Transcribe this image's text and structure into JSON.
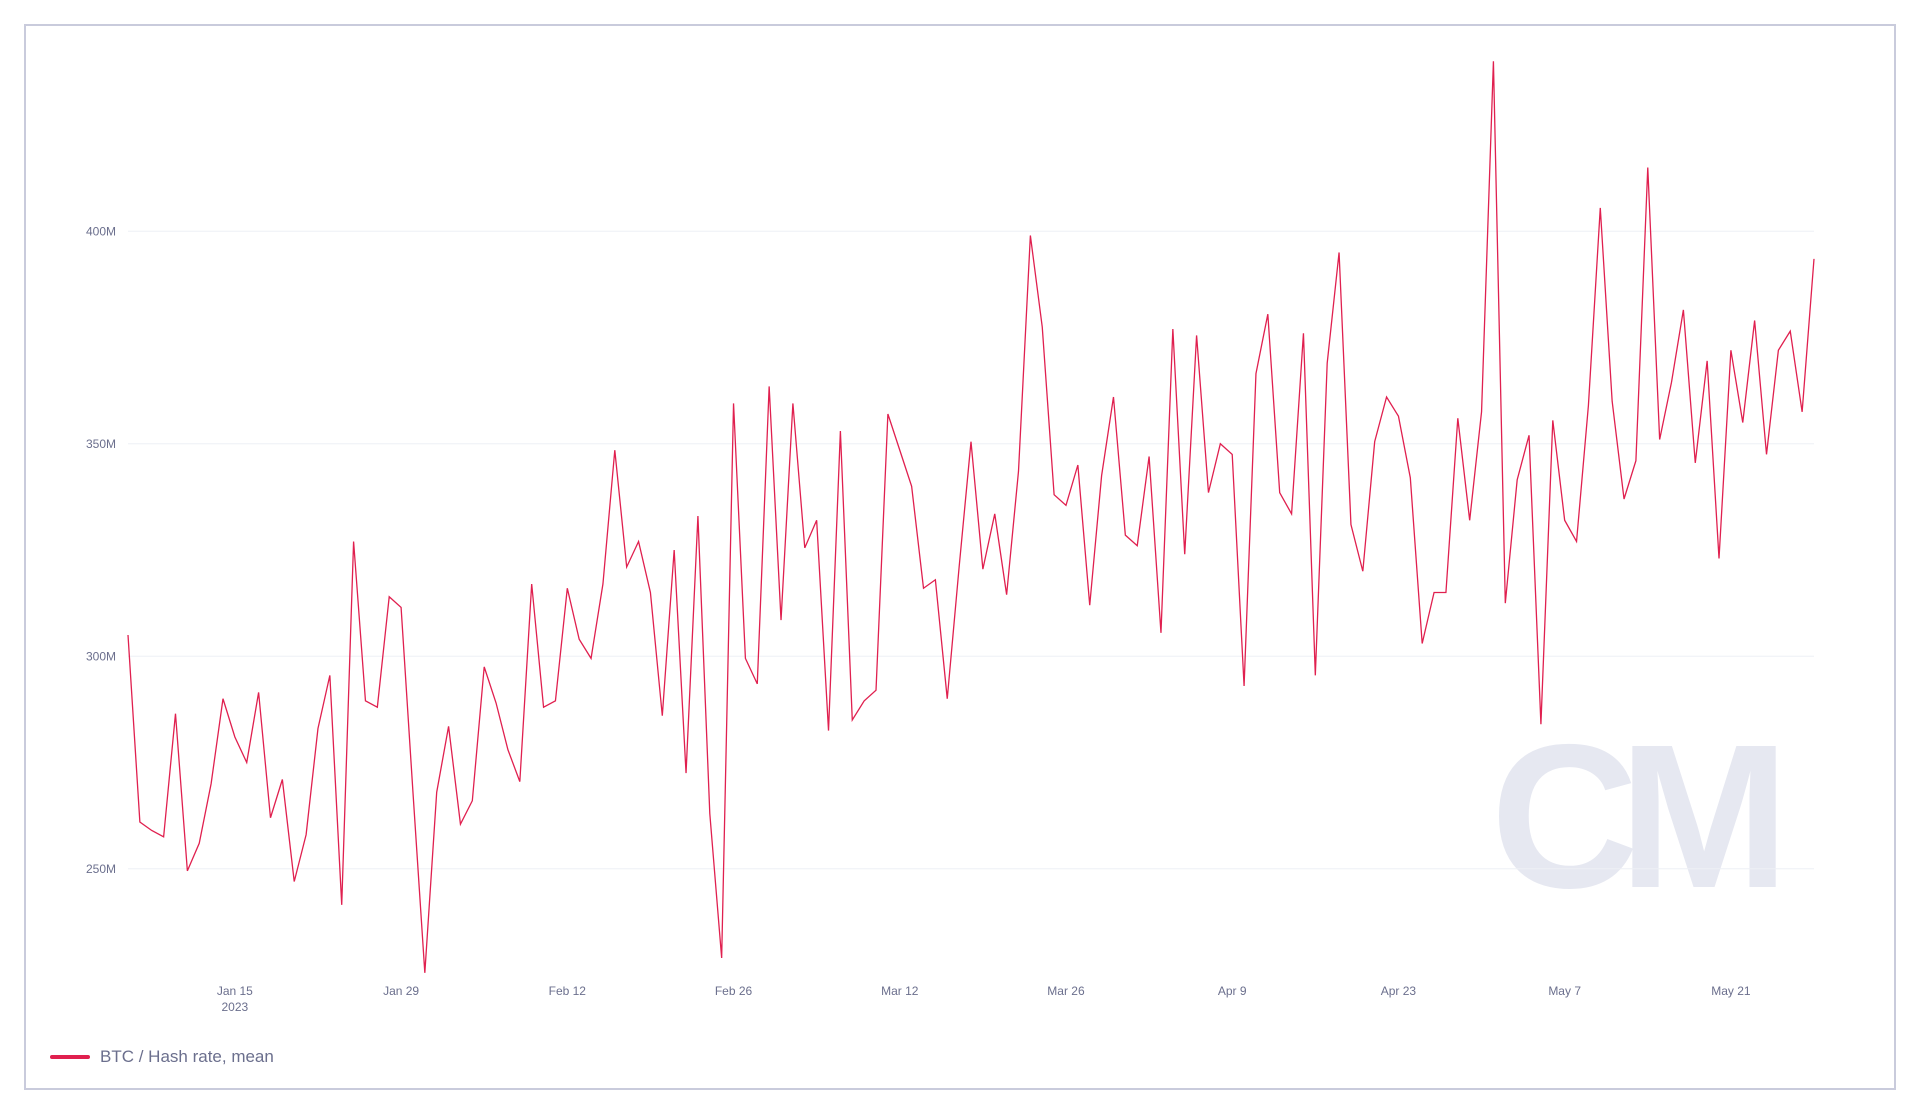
{
  "chart_data": {
    "type": "line",
    "title": "",
    "xlabel": "",
    "ylabel": "",
    "ylim": [
      225000000,
      445000000
    ],
    "grid": true,
    "legend_position": "bottom-left",
    "y_ticks": [
      {
        "value": 250000000,
        "label": "250M"
      },
      {
        "value": 300000000,
        "label": "300M"
      },
      {
        "value": 350000000,
        "label": "350M"
      },
      {
        "value": 400000000,
        "label": "400M"
      }
    ],
    "x_ticks": [
      {
        "date": "2023-01-15",
        "label": "Jan 15",
        "sublabel": "2023"
      },
      {
        "date": "2023-01-29",
        "label": "Jan 29"
      },
      {
        "date": "2023-02-12",
        "label": "Feb 12"
      },
      {
        "date": "2023-02-26",
        "label": "Feb 26"
      },
      {
        "date": "2023-03-12",
        "label": "Mar 12"
      },
      {
        "date": "2023-03-26",
        "label": "Mar 26"
      },
      {
        "date": "2023-04-09",
        "label": "Apr 9"
      },
      {
        "date": "2023-04-23",
        "label": "Apr 23"
      },
      {
        "date": "2023-05-07",
        "label": "May 7"
      },
      {
        "date": "2023-05-21",
        "label": "May 21"
      }
    ],
    "x_range": [
      "2023-01-06",
      "2023-05-28"
    ],
    "series": [
      {
        "name": "BTC / Hash rate, mean",
        "color": "#e0204f",
        "x": [
          "2023-01-06",
          "2023-01-07",
          "2023-01-08",
          "2023-01-09",
          "2023-01-10",
          "2023-01-11",
          "2023-01-12",
          "2023-01-13",
          "2023-01-14",
          "2023-01-15",
          "2023-01-16",
          "2023-01-17",
          "2023-01-18",
          "2023-01-19",
          "2023-01-20",
          "2023-01-21",
          "2023-01-22",
          "2023-01-23",
          "2023-01-24",
          "2023-01-25",
          "2023-01-26",
          "2023-01-27",
          "2023-01-28",
          "2023-01-29",
          "2023-01-30",
          "2023-01-31",
          "2023-02-01",
          "2023-02-02",
          "2023-02-03",
          "2023-02-04",
          "2023-02-05",
          "2023-02-06",
          "2023-02-07",
          "2023-02-08",
          "2023-02-09",
          "2023-02-10",
          "2023-02-11",
          "2023-02-12",
          "2023-02-13",
          "2023-02-14",
          "2023-02-15",
          "2023-02-16",
          "2023-02-17",
          "2023-02-18",
          "2023-02-19",
          "2023-02-20",
          "2023-02-21",
          "2023-02-22",
          "2023-02-23",
          "2023-02-24",
          "2023-02-25",
          "2023-02-26",
          "2023-02-27",
          "2023-02-28",
          "2023-03-01",
          "2023-03-02",
          "2023-03-03",
          "2023-03-04",
          "2023-03-05",
          "2023-03-06",
          "2023-03-07",
          "2023-03-08",
          "2023-03-09",
          "2023-03-10",
          "2023-03-11",
          "2023-03-12",
          "2023-03-13",
          "2023-03-14",
          "2023-03-15",
          "2023-03-16",
          "2023-03-17",
          "2023-03-18",
          "2023-03-19",
          "2023-03-20",
          "2023-03-21",
          "2023-03-22",
          "2023-03-23",
          "2023-03-24",
          "2023-03-25",
          "2023-03-26",
          "2023-03-27",
          "2023-03-28",
          "2023-03-29",
          "2023-03-30",
          "2023-03-31",
          "2023-04-01",
          "2023-04-02",
          "2023-04-03",
          "2023-04-04",
          "2023-04-05",
          "2023-04-06",
          "2023-04-07",
          "2023-04-08",
          "2023-04-09",
          "2023-04-10",
          "2023-04-11",
          "2023-04-12",
          "2023-04-13",
          "2023-04-14",
          "2023-04-15",
          "2023-04-16",
          "2023-04-17",
          "2023-04-18",
          "2023-04-19",
          "2023-04-20",
          "2023-04-21",
          "2023-04-22",
          "2023-04-23",
          "2023-04-24",
          "2023-04-25",
          "2023-04-26",
          "2023-04-27",
          "2023-04-28",
          "2023-04-29",
          "2023-04-30",
          "2023-05-01",
          "2023-05-02",
          "2023-05-03",
          "2023-05-04",
          "2023-05-05",
          "2023-05-06",
          "2023-05-07",
          "2023-05-08",
          "2023-05-09",
          "2023-05-10",
          "2023-05-11",
          "2023-05-12",
          "2023-05-13",
          "2023-05-14",
          "2023-05-15",
          "2023-05-16",
          "2023-05-17",
          "2023-05-18",
          "2023-05-19",
          "2023-05-20",
          "2023-05-21",
          "2023-05-22",
          "2023-05-23",
          "2023-05-24",
          "2023-05-25",
          "2023-05-26",
          "2023-05-27",
          "2023-05-28"
        ],
        "values": [
          305000000,
          261000000,
          259000000,
          257500000,
          286500000,
          249500000,
          256000000,
          270000000,
          290000000,
          281000000,
          275000000,
          291500000,
          262000000,
          271000000,
          247000000,
          258000000,
          283000000,
          295500000,
          241500000,
          327000000,
          289500000,
          288000000,
          314000000,
          311500000,
          268000000,
          225500000,
          268000000,
          283500000,
          260500000,
          266000000,
          297500000,
          289000000,
          278000000,
          270500000,
          317000000,
          288000000,
          289500000,
          316000000,
          304000000,
          299500000,
          317000000,
          348500000,
          321000000,
          327000000,
          315000000,
          286000000,
          325000000,
          272500000,
          333000000,
          263000000,
          229000000,
          359500000,
          299500000,
          293500000,
          363500000,
          308500000,
          359500000,
          325500000,
          332000000,
          282500000,
          353000000,
          285000000,
          289500000,
          292000000,
          357000000,
          348500000,
          340000000,
          316000000,
          318000000,
          290000000,
          321000000,
          350500000,
          320500000,
          333500000,
          314500000,
          343500000,
          399000000,
          377500000,
          338000000,
          335500000,
          345000000,
          312000000,
          342500000,
          361000000,
          328500000,
          326000000,
          347000000,
          305500000,
          377000000,
          324000000,
          375500000,
          338500000,
          350000000,
          347500000,
          293000000,
          366500000,
          380500000,
          338500000,
          333500000,
          376000000,
          295500000,
          369000000,
          395000000,
          331000000,
          320000000,
          350500000,
          361000000,
          356500000,
          342000000,
          303000000,
          315000000,
          315000000,
          356000000,
          332000000,
          357500000,
          440000000,
          312500000,
          341500000,
          352000000,
          284000000,
          355500000,
          332000000,
          327000000,
          359000000,
          405500000,
          360000000,
          337000000,
          346000000,
          415000000,
          351000000,
          364500000,
          381500000,
          345500000,
          369500000,
          323000000,
          372000000,
          355000000,
          379000000,
          347500000,
          372000000,
          376500000,
          357500000,
          393500000
        ]
      }
    ]
  },
  "watermark_text": "CM"
}
